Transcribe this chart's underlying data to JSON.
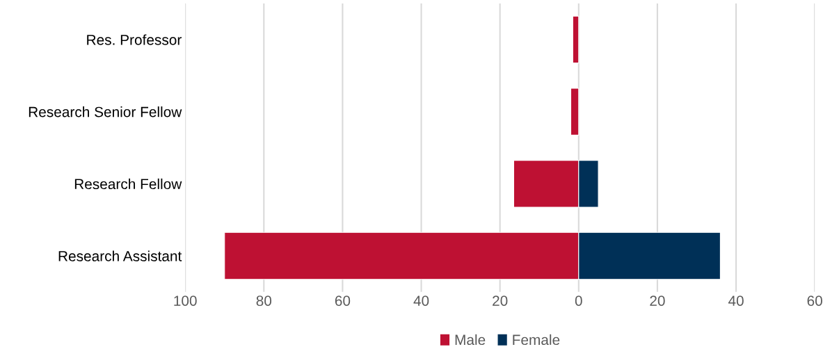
{
  "chart_data": {
    "type": "bar",
    "orientation": "horizontal",
    "stacked": true,
    "categories": [
      "Res. Professor",
      "Research Senior Fellow",
      "Research Fellow",
      "Research Assistant"
    ],
    "series": [
      {
        "name": "Male",
        "color": "#be1133",
        "values": [
          -1.5,
          -2,
          -16.5,
          -90
        ]
      },
      {
        "name": "Female",
        "color": "#003057",
        "values": [
          null,
          null,
          5,
          36
        ]
      }
    ],
    "xlim": [
      -100,
      60
    ],
    "xticks": [
      {
        "value": -100,
        "label": "100"
      },
      {
        "value": -80,
        "label": "80"
      },
      {
        "value": -60,
        "label": "60"
      },
      {
        "value": -40,
        "label": "40"
      },
      {
        "value": -20,
        "label": "20"
      },
      0,
      20,
      40,
      60
    ],
    "grid": "x",
    "legend": "bottom"
  }
}
